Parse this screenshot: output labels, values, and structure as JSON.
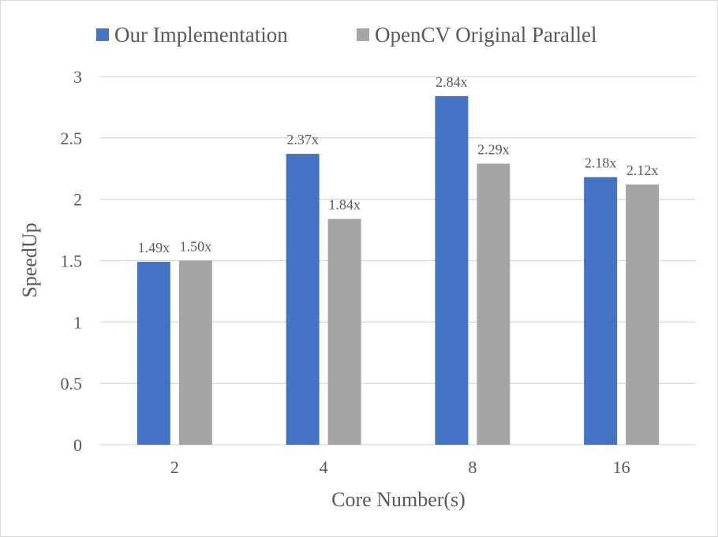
{
  "chart_data": {
    "type": "bar",
    "title": "",
    "xlabel": "Core Number(s)",
    "ylabel": "SpeedUp",
    "categories": [
      "2",
      "4",
      "8",
      "16"
    ],
    "ylim": [
      0,
      3
    ],
    "yticks": [
      "0",
      "0.5",
      "1",
      "1.5",
      "2",
      "2.5",
      "3"
    ],
    "grid": true,
    "legend_position": "top",
    "series": [
      {
        "name": "Our Implementation",
        "color": "#4472c4",
        "values": [
          1.49,
          2.37,
          2.84,
          2.18
        ],
        "labels": [
          "1.49x",
          "2.37x",
          "2.84x",
          "2.18x"
        ]
      },
      {
        "name": "OpenCV Original Parallel",
        "color": "#a5a5a5",
        "values": [
          1.5,
          1.84,
          2.29,
          2.12
        ],
        "labels": [
          "1.50x",
          "1.84x",
          "2.29x",
          "2.12x"
        ]
      }
    ]
  }
}
